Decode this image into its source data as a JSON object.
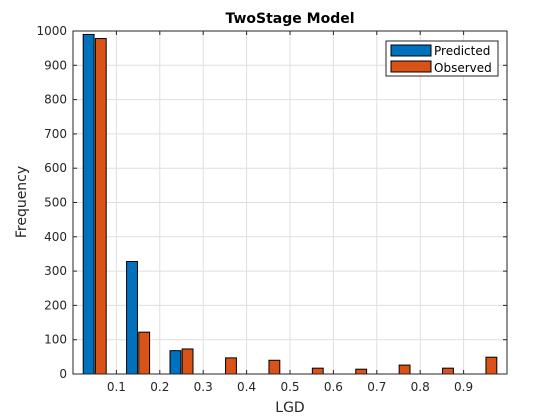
{
  "chart_data": {
    "type": "bar",
    "title": "TwoStage Model",
    "xlabel": "LGD",
    "ylabel": "Frequency",
    "x": [
      0.05,
      0.15,
      0.25,
      0.35,
      0.45,
      0.55,
      0.65,
      0.75,
      0.85,
      0.95
    ],
    "xlim": [
      0,
      1
    ],
    "ylim": [
      0,
      1000
    ],
    "xticks": [
      "0.1",
      "0.2",
      "0.3",
      "0.4",
      "0.5",
      "0.6",
      "0.7",
      "0.8",
      "0.9"
    ],
    "yticks": [
      "0",
      "100",
      "200",
      "300",
      "400",
      "500",
      "600",
      "700",
      "800",
      "900",
      "1000"
    ],
    "grid": true,
    "legend_position": "top-right",
    "series": [
      {
        "name": "Predicted",
        "color": "#0072BD",
        "values": [
          990,
          328,
          68,
          0,
          0,
          0,
          0,
          0,
          0,
          0
        ]
      },
      {
        "name": "Observed",
        "color": "#D95319",
        "values": [
          978,
          122,
          73,
          47,
          40,
          17,
          14,
          26,
          17,
          49
        ]
      }
    ]
  }
}
